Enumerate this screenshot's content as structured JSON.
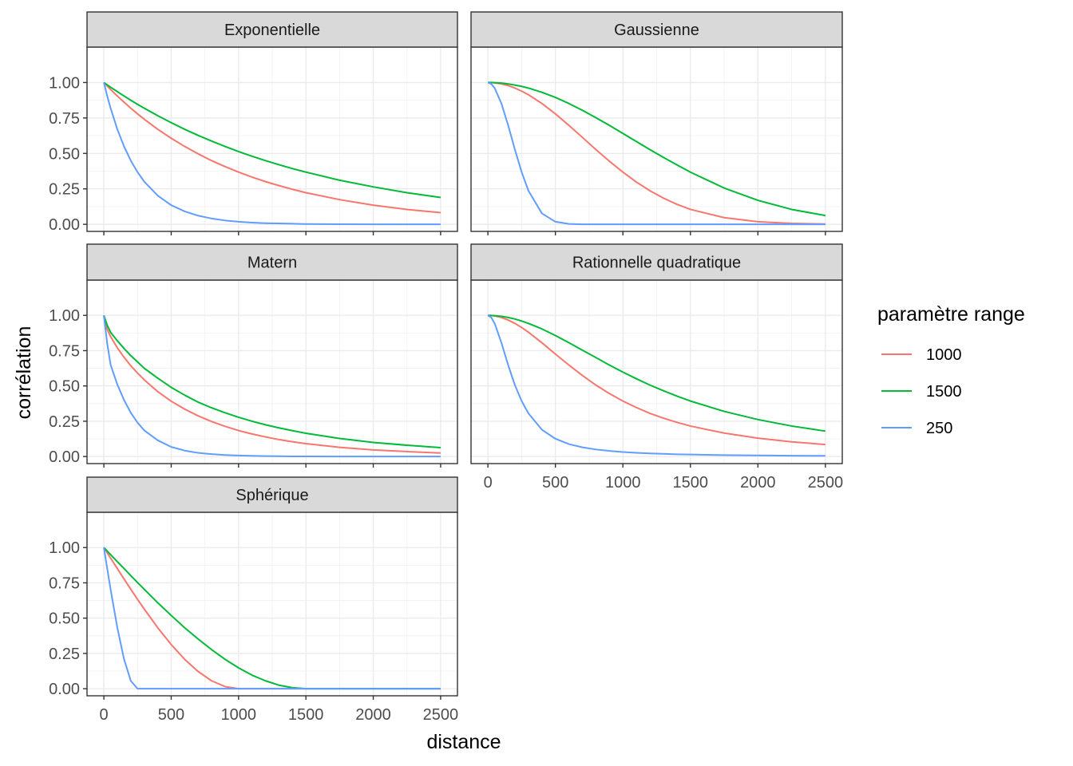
{
  "chart_data": {
    "type": "line",
    "facet_order": [
      "Exponentielle",
      "Gaussienne",
      "Matern",
      "Rationnelle quadratique",
      "Sphérique"
    ],
    "xlabel": "distance",
    "ylabel": "corrélation",
    "xlim": [
      -125,
      2625
    ],
    "ylim": [
      -0.05,
      1.25
    ],
    "x_ticks": [
      0,
      500,
      1000,
      1500,
      2000,
      2500
    ],
    "y_ticks": [
      0.0,
      0.25,
      0.5,
      0.75,
      1.0
    ],
    "y_tick_labels": [
      "0.00",
      "0.25",
      "0.50",
      "0.75",
      "1.00"
    ],
    "grid": true,
    "legend": {
      "title": "paramètre range",
      "position": "right",
      "entries": [
        "1000",
        "1500",
        "250"
      ]
    },
    "colors": {
      "1000": "#F8766D",
      "1500": "#00BA38",
      "250": "#619CFF"
    },
    "x": [
      0,
      25,
      50,
      100,
      150,
      200,
      250,
      300,
      400,
      500,
      600,
      700,
      800,
      900,
      1000,
      1100,
      1200,
      1300,
      1400,
      1500,
      1750,
      2000,
      2250,
      2500
    ],
    "facets": [
      {
        "name": "Exponentielle",
        "series": [
          {
            "name": "1000",
            "values": [
              1.0,
              0.975,
              0.951,
              0.905,
              0.861,
              0.819,
              0.779,
              0.741,
              0.67,
              0.607,
              0.549,
              0.497,
              0.449,
              0.407,
              0.368,
              0.333,
              0.301,
              0.273,
              0.247,
              0.223,
              0.174,
              0.135,
              0.105,
              0.082
            ]
          },
          {
            "name": "1500",
            "values": [
              1.0,
              0.984,
              0.967,
              0.936,
              0.905,
              0.875,
              0.846,
              0.819,
              0.766,
              0.717,
              0.67,
              0.627,
              0.587,
              0.549,
              0.513,
              0.48,
              0.449,
              0.42,
              0.393,
              0.368,
              0.311,
              0.264,
              0.223,
              0.189
            ]
          },
          {
            "name": "250",
            "values": [
              1.0,
              0.905,
              0.819,
              0.67,
              0.549,
              0.449,
              0.368,
              0.301,
              0.202,
              0.135,
              0.091,
              0.061,
              0.041,
              0.027,
              0.018,
              0.012,
              0.008,
              0.006,
              0.004,
              0.002,
              0.001,
              0.0,
              0.0,
              0.0
            ]
          }
        ]
      },
      {
        "name": "Gaussienne",
        "series": [
          {
            "name": "1000",
            "values": [
              1.0,
              0.999,
              0.998,
              0.99,
              0.978,
              0.961,
              0.939,
              0.914,
              0.852,
              0.779,
              0.698,
              0.613,
              0.527,
              0.445,
              0.368,
              0.298,
              0.237,
              0.185,
              0.141,
              0.105,
              0.047,
              0.018,
              0.006,
              0.002
            ]
          },
          {
            "name": "1500",
            "values": [
              1.0,
              1.0,
              0.999,
              0.996,
              0.99,
              0.982,
              0.973,
              0.961,
              0.931,
              0.895,
              0.852,
              0.804,
              0.752,
              0.698,
              0.641,
              0.584,
              0.527,
              0.472,
              0.419,
              0.368,
              0.256,
              0.169,
              0.105,
              0.062
            ]
          },
          {
            "name": "250",
            "values": [
              1.0,
              0.99,
              0.961,
              0.852,
              0.698,
              0.527,
              0.368,
              0.237,
              0.077,
              0.018,
              0.003,
              0.0,
              0.0,
              0.0,
              0.0,
              0.0,
              0.0,
              0.0,
              0.0,
              0.0,
              0.0,
              0.0,
              0.0,
              0.0
            ]
          }
        ]
      },
      {
        "name": "Matern",
        "series": [
          {
            "name": "1000",
            "values": [
              1.0,
              0.9,
              0.85,
              0.77,
              0.703,
              0.643,
              0.591,
              0.543,
              0.46,
              0.392,
              0.336,
              0.288,
              0.248,
              0.214,
              0.184,
              0.16,
              0.139,
              0.12,
              0.105,
              0.091,
              0.065,
              0.047,
              0.035,
              0.025
            ]
          },
          {
            "name": "1500",
            "values": [
              1.0,
              0.93,
              0.88,
              0.82,
              0.765,
              0.715,
              0.67,
              0.625,
              0.555,
              0.49,
              0.435,
              0.385,
              0.345,
              0.31,
              0.278,
              0.25,
              0.225,
              0.203,
              0.183,
              0.165,
              0.128,
              0.1,
              0.08,
              0.063
            ]
          },
          {
            "name": "250",
            "values": [
              1.0,
              0.8,
              0.65,
              0.51,
              0.4,
              0.31,
              0.24,
              0.185,
              0.115,
              0.068,
              0.042,
              0.026,
              0.017,
              0.011,
              0.007,
              0.005,
              0.003,
              0.002,
              0.001,
              0.001,
              0.0,
              0.0,
              0.0,
              0.0
            ]
          }
        ]
      },
      {
        "name": "Rationnelle quadratique",
        "series": [
          {
            "name": "1000",
            "values": [
              1.0,
              0.999,
              0.996,
              0.985,
              0.967,
              0.943,
              0.914,
              0.881,
              0.806,
              0.726,
              0.648,
              0.574,
              0.506,
              0.446,
              0.393,
              0.347,
              0.306,
              0.272,
              0.242,
              0.216,
              0.166,
              0.13,
              0.104,
              0.085
            ]
          },
          {
            "name": "1500",
            "values": [
              1.0,
              0.999,
              0.998,
              0.993,
              0.985,
              0.974,
              0.96,
              0.943,
              0.904,
              0.857,
              0.806,
              0.753,
              0.701,
              0.648,
              0.598,
              0.551,
              0.506,
              0.466,
              0.428,
              0.393,
              0.32,
              0.262,
              0.216,
              0.18
            ]
          },
          {
            "name": "250",
            "values": [
              1.0,
              0.985,
              0.943,
              0.806,
              0.648,
              0.506,
              0.393,
              0.306,
              0.19,
              0.126,
              0.088,
              0.065,
              0.05,
              0.04,
              0.032,
              0.026,
              0.022,
              0.019,
              0.016,
              0.014,
              0.01,
              0.008,
              0.006,
              0.005
            ]
          }
        ]
      },
      {
        "name": "Sphérique",
        "series": [
          {
            "name": "1000",
            "values": [
              1.0,
              0.963,
              0.925,
              0.851,
              0.777,
              0.704,
              0.633,
              0.564,
              0.432,
              0.313,
              0.208,
              0.122,
              0.056,
              0.015,
              0.0,
              0.0,
              0.0,
              0.0,
              0.0,
              0.0,
              0.0,
              0.0,
              0.0,
              0.0
            ]
          },
          {
            "name": "1500",
            "values": [
              1.0,
              0.975,
              0.95,
              0.9,
              0.851,
              0.801,
              0.752,
              0.704,
              0.609,
              0.519,
              0.432,
              0.352,
              0.277,
              0.208,
              0.148,
              0.096,
              0.056,
              0.025,
              0.007,
              0.0,
              0.0,
              0.0,
              0.0,
              0.0
            ]
          },
          {
            "name": "250",
            "values": [
              1.0,
              0.851,
              0.704,
              0.432,
              0.208,
              0.056,
              0.0,
              0.0,
              0.0,
              0.0,
              0.0,
              0.0,
              0.0,
              0.0,
              0.0,
              0.0,
              0.0,
              0.0,
              0.0,
              0.0,
              0.0,
              0.0,
              0.0,
              0.0
            ]
          }
        ]
      }
    ]
  }
}
